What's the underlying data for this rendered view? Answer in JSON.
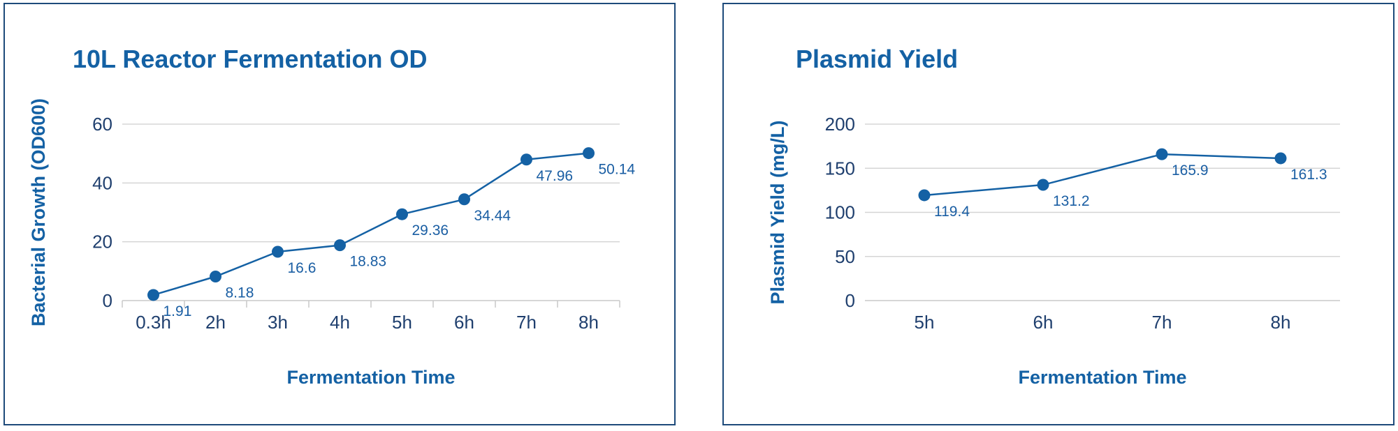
{
  "colors": {
    "accent": "#1461a4",
    "border": "#1d4a7a",
    "grid": "#d5d5d5"
  },
  "chart_data": [
    {
      "type": "line",
      "title": "10L Reactor Fermentation OD",
      "xlabel": "Fermentation Time",
      "ylabel": "Bacterial Growth (OD600)",
      "categories": [
        "0.3h",
        "2h",
        "3h",
        "4h",
        "5h",
        "6h",
        "7h",
        "8h"
      ],
      "values": [
        1.91,
        8.18,
        16.6,
        18.83,
        29.36,
        34.44,
        47.96,
        50.14
      ],
      "data_labels": [
        "1.91",
        "8.18",
        "16.6",
        "18.83",
        "29.36",
        "34.44",
        "47.96",
        "50.14"
      ],
      "ylim": [
        0,
        60
      ],
      "yticks": [
        0,
        20,
        40,
        60
      ],
      "ytick_labels": [
        "0",
        "20",
        "40",
        "60"
      ],
      "grid": true,
      "legend": "none"
    },
    {
      "type": "line",
      "title": "Plasmid Yield",
      "xlabel": "Fermentation Time",
      "ylabel": "Plasmid Yield (mg/L)",
      "categories": [
        "5h",
        "6h",
        "7h",
        "8h"
      ],
      "values": [
        119.4,
        131.2,
        165.9,
        161.3
      ],
      "data_labels": [
        "119.4",
        "131.2",
        "165.9",
        "161.3"
      ],
      "ylim": [
        0,
        200
      ],
      "yticks": [
        0,
        50,
        100,
        150,
        200
      ],
      "ytick_labels": [
        "0",
        "50",
        "100",
        "150",
        "200"
      ],
      "grid": true,
      "legend": "none"
    }
  ]
}
